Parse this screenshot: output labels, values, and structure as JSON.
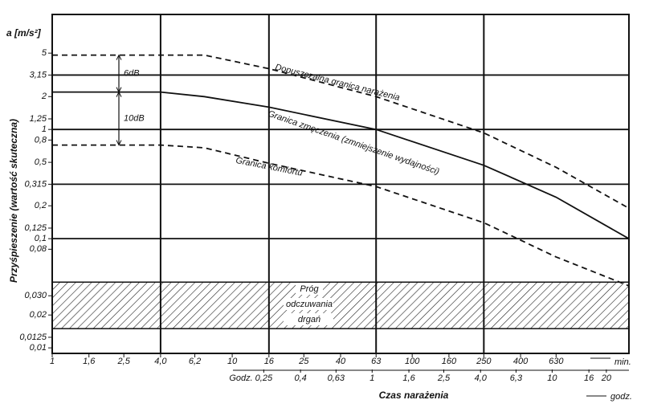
{
  "chart_data": {
    "type": "line",
    "y_label": "Przyśpieszenie (wartość skuteczna)",
    "y_unit": "a [m/s²]",
    "x_label": "Czas narażenia",
    "x_unit": "min.",
    "x2_unit": "godz.",
    "x2_prefix": "Godz.",
    "log_x": true,
    "log_y": true,
    "xlim": [
      1,
      1600
    ],
    "ylim": [
      0.0089,
      11.3
    ],
    "x2lim": [
      0.0167,
      26.7
    ],
    "xticks": [
      1,
      {
        "value": 1.6,
        "label": "1,6"
      },
      {
        "value": 2.5,
        "label": "2,5"
      },
      {
        "value": 4,
        "label": "4,0"
      },
      {
        "value": 6.2,
        "label": "6,2"
      },
      10,
      16,
      25,
      40,
      63,
      100,
      160,
      250,
      400,
      630
    ],
    "x2ticks": [
      {
        "value": 0.25,
        "label": "0,25"
      },
      {
        "value": 0.4,
        "label": "0,4"
      },
      {
        "value": 0.63,
        "label": "0,63"
      },
      1,
      {
        "value": 1.6,
        "label": "1,6"
      },
      {
        "value": 2.5,
        "label": "2,5"
      },
      {
        "value": 4,
        "label": "4,0"
      },
      {
        "value": 6.3,
        "label": "6,3"
      },
      10,
      16,
      20
    ],
    "yticks": [
      {
        "value": 0.01,
        "label": "0,01"
      },
      {
        "value": 0.0125,
        "label": "0,0125"
      },
      {
        "value": 0.02,
        "label": "0,02"
      },
      {
        "value": 0.03,
        "label": "0,030"
      },
      {
        "value": 0.08,
        "label": "0,08"
      },
      {
        "value": 0.1,
        "label": "0,1"
      },
      {
        "value": 0.125,
        "label": "0,125"
      },
      {
        "value": 0.2,
        "label": "0,2"
      },
      {
        "value": 0.315,
        "label": "0,315"
      },
      {
        "value": 0.5,
        "label": "0,5"
      },
      {
        "value": 0.8,
        "label": "0,8"
      },
      1,
      {
        "value": 1.25,
        "label": "1,25"
      },
      2,
      {
        "value": 3.15,
        "label": "3,15"
      },
      5
    ],
    "xgrid": [
      4,
      16,
      63,
      250
    ],
    "ygrid": [
      3.15,
      1,
      0.315,
      0.1
    ],
    "x": [
      1,
      4,
      7,
      16,
      63,
      250,
      630,
      1600
    ],
    "series": [
      {
        "name": "Dopuszczalna granica narażenia",
        "color": "#111",
        "dashed": true,
        "values": [
          4.8,
          4.8,
          4.8,
          3.6,
          2.0,
          0.93,
          0.45,
          0.19
        ]
      },
      {
        "name": "Granica zmęczenia (zmniejszenie wydajności)",
        "color": "#111",
        "dashed": false,
        "values": [
          2.2,
          2.2,
          2.0,
          1.6,
          1.0,
          0.47,
          0.24,
          0.1
        ]
      },
      {
        "name": "Granica komfortu",
        "color": "#111",
        "dashed": true,
        "values": [
          0.72,
          0.72,
          0.68,
          0.49,
          0.3,
          0.14,
          0.068,
          0.037
        ]
      }
    ],
    "band": {
      "lines": [
        "Próg",
        "odczuwania",
        "drgań"
      ],
      "values": [
        0.015,
        0.04
      ]
    },
    "annotations": [
      {
        "text": "6dB",
        "values": [
          4.8,
          2.2
        ]
      },
      {
        "text": "10dB",
        "values": [
          2.2,
          0.72
        ]
      }
    ]
  }
}
